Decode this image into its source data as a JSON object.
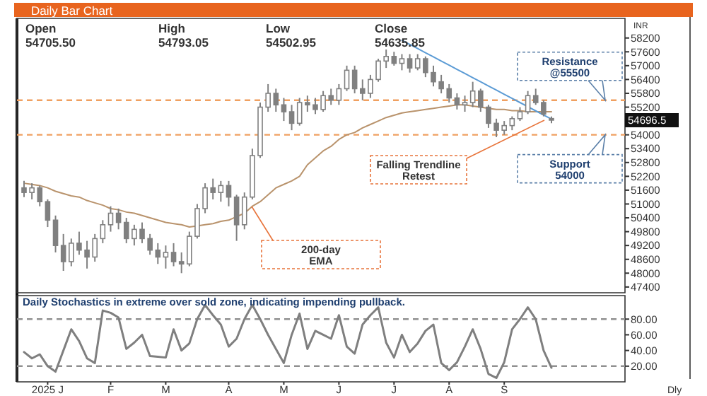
{
  "chart_data": [
    {
      "type": "candlestick",
      "title": "Daily Bar Chart",
      "ylabel": "INR",
      "categories": [
        null,
        null,
        null,
        null,
        null,
        null,
        null,
        null,
        null,
        null,
        null,
        null,
        null,
        null,
        null,
        null,
        null,
        null,
        null,
        null,
        null,
        null,
        null,
        null,
        null,
        null,
        null,
        null,
        null,
        null,
        null,
        null,
        null,
        null,
        null,
        null,
        null,
        null,
        null,
        null,
        null,
        null,
        null,
        null,
        null,
        null,
        null,
        null,
        null,
        null,
        null,
        null,
        null,
        null,
        null,
        null,
        null,
        null,
        null,
        null,
        null,
        null,
        null,
        null,
        null,
        null,
        null,
        null
      ],
      "ohlc": [
        [
          51700,
          52000,
          51300,
          51500
        ],
        [
          51500,
          51900,
          51200,
          51700
        ],
        [
          51700,
          51800,
          50900,
          51100
        ],
        [
          51100,
          51200,
          50000,
          50300
        ],
        [
          50300,
          50500,
          48900,
          49200
        ],
        [
          49200,
          49700,
          48100,
          48500
        ],
        [
          48500,
          49500,
          48300,
          49300
        ],
        [
          49300,
          49800,
          48800,
          49000
        ],
        [
          49000,
          49400,
          48200,
          48700
        ],
        [
          48700,
          49700,
          48500,
          49500
        ],
        [
          49500,
          50300,
          49300,
          50100
        ],
        [
          50100,
          50900,
          49800,
          50600
        ],
        [
          50600,
          50800,
          49900,
          50200
        ],
        [
          50200,
          50400,
          49300,
          49500
        ],
        [
          49500,
          50100,
          49200,
          49900
        ],
        [
          49900,
          50200,
          49300,
          49500
        ],
        [
          49500,
          49700,
          48800,
          49000
        ],
        [
          49000,
          49300,
          48400,
          48700
        ],
        [
          48700,
          49200,
          48200,
          48900
        ],
        [
          48900,
          49300,
          48300,
          48500
        ],
        [
          48500,
          48900,
          48000,
          48400
        ],
        [
          48400,
          49800,
          48300,
          49600
        ],
        [
          49600,
          51000,
          49500,
          50800
        ],
        [
          50800,
          51900,
          50600,
          51700
        ],
        [
          51700,
          52100,
          51200,
          51500
        ],
        [
          51500,
          52000,
          51100,
          51800
        ],
        [
          51800,
          52000,
          50900,
          51300
        ],
        [
          51300,
          51400,
          49400,
          50100
        ],
        [
          50100,
          51500,
          49900,
          51300
        ],
        [
          51300,
          53400,
          51200,
          53100
        ],
        [
          53100,
          55400,
          53000,
          55200
        ],
        [
          55200,
          56200,
          55000,
          55800
        ],
        [
          55800,
          56000,
          55000,
          55300
        ],
        [
          55300,
          55600,
          54600,
          55000
        ],
        [
          55000,
          55300,
          54200,
          54500
        ],
        [
          54500,
          55600,
          54400,
          55400
        ],
        [
          55400,
          55700,
          55000,
          55300
        ],
        [
          55300,
          55600,
          54900,
          55100
        ],
        [
          55100,
          55900,
          55000,
          55700
        ],
        [
          55700,
          56000,
          55300,
          55500
        ],
        [
          55500,
          56200,
          55300,
          56000
        ],
        [
          56000,
          57000,
          55900,
          56800
        ],
        [
          56800,
          57000,
          55800,
          56000
        ],
        [
          56000,
          56400,
          55500,
          55800
        ],
        [
          55800,
          56600,
          55600,
          56400
        ],
        [
          56400,
          57300,
          56300,
          57200
        ],
        [
          57200,
          57700,
          56900,
          57400
        ],
        [
          57400,
          57600,
          57000,
          57100
        ],
        [
          57100,
          57500,
          56800,
          57300
        ],
        [
          57300,
          57500,
          56700,
          56900
        ],
        [
          56900,
          57500,
          56800,
          57300
        ],
        [
          57300,
          57400,
          56500,
          56700
        ],
        [
          56700,
          57000,
          56100,
          56300
        ],
        [
          56300,
          56600,
          55800,
          56000
        ],
        [
          56000,
          56200,
          55400,
          55600
        ],
        [
          55600,
          55800,
          55100,
          55300
        ],
        [
          55300,
          55700,
          55000,
          55400
        ],
        [
          55400,
          56300,
          55200,
          55900
        ],
        [
          55900,
          56000,
          55000,
          55200
        ],
        [
          55200,
          55300,
          54300,
          54500
        ],
        [
          54500,
          54700,
          53900,
          54200
        ],
        [
          54200,
          54600,
          54000,
          54400
        ],
        [
          54400,
          54800,
          54200,
          54700
        ],
        [
          54700,
          55200,
          54600,
          55000
        ],
        [
          55000,
          55900,
          54900,
          55700
        ],
        [
          55700,
          56000,
          55300,
          55400
        ],
        [
          55400,
          55500,
          54800,
          54900
        ],
        [
          54705.5,
          54793.05,
          54502.95,
          54635.85
        ]
      ],
      "color": "#808080",
      "series": [
        {
          "type": "line",
          "color": "#b9936c",
          "values": [
            51900,
            51850,
            51800,
            51700,
            51550,
            51450,
            51350,
            51300,
            51150,
            51050,
            50950,
            50800,
            50750,
            50650,
            50600,
            50500,
            50400,
            50300,
            50200,
            50150,
            50100,
            50000,
            50050,
            50100,
            50150,
            50250,
            50300,
            50450,
            50600,
            50900,
            51100,
            51400,
            51700,
            51850,
            52000,
            52200,
            52700,
            53000,
            53300,
            53500,
            53800,
            54000,
            54100,
            54300,
            54450,
            54600,
            54750,
            54850,
            54950,
            55000,
            55050,
            55100,
            55150,
            55200,
            55250,
            55300,
            55300,
            55250,
            55200,
            55150,
            55100,
            55100,
            55050,
            55050,
            55000,
            55000,
            55000,
            55000
          ]
        },
        {
          "type": "line",
          "color": "#5b9bd5",
          "values": [
            null,
            null,
            null,
            null,
            null,
            null,
            null,
            null,
            null,
            null,
            null,
            null,
            null,
            null,
            null,
            null,
            null,
            null,
            null,
            null,
            null,
            null,
            null,
            null,
            null,
            null,
            null,
            null,
            null,
            null,
            null,
            null,
            null,
            null,
            null,
            null,
            null,
            null,
            null,
            null,
            null,
            null,
            null,
            null,
            null,
            null,
            null,
            null,
            58100,
            57920,
            57740,
            57560,
            57380,
            57200,
            57020,
            56840,
            56660,
            56480,
            56300,
            56120,
            55940,
            55760,
            55580,
            55400,
            55220,
            55040,
            54860,
            54680
          ]
        }
      ],
      "ylim": [
        47150,
        59050
      ],
      "yticks": [
        47400,
        48000,
        48600,
        49200,
        49800,
        50400,
        51000,
        51600,
        52200,
        52800,
        53400,
        54000,
        {
          "value": 54600,
          "label": null
        },
        55200,
        55800,
        56400,
        57000,
        57600,
        58200
      ],
      "ref_lines": [
        {
          "axis": "y",
          "value": 55500,
          "label": "Resistance @55500",
          "color": "#f0a060",
          "line_style": "dashed"
        },
        {
          "axis": "y",
          "value": 54000,
          "label": "Support 54000",
          "color": "#f0a060",
          "line_style": "dashed"
        }
      ],
      "annotations": [
        "Open",
        "High",
        "Low",
        "Close",
        "54705.50",
        "54793.05",
        "54502.95",
        "54635.85",
        "Falling Trendline Retest",
        "200-day EMA",
        "54696.5"
      ]
    },
    {
      "type": "line",
      "title": "Daily Stochastics in extreme over sold zone, indicating impending pullback.",
      "categories": [
        null,
        null,
        null,
        "2025 J",
        null,
        null,
        null,
        null,
        null,
        null,
        null,
        "F",
        null,
        null,
        null,
        null,
        null,
        null,
        "M",
        null,
        null,
        null,
        null,
        null,
        null,
        null,
        "A",
        null,
        null,
        null,
        null,
        null,
        null,
        "M",
        null,
        null,
        null,
        null,
        null,
        null,
        "J",
        null,
        null,
        null,
        null,
        null,
        null,
        "J",
        null,
        null,
        null,
        null,
        null,
        null,
        "A",
        null,
        null,
        null,
        null,
        null,
        null,
        "S",
        null,
        null,
        null,
        null,
        null,
        null
      ],
      "values": [
        38,
        30,
        35,
        20,
        13,
        40,
        67,
        52,
        30,
        24,
        91,
        88,
        82,
        42,
        50,
        60,
        33,
        32,
        31,
        67,
        40,
        49,
        80,
        98,
        85,
        73,
        45,
        55,
        80,
        98,
        80,
        60,
        42,
        24,
        60,
        87,
        42,
        65,
        60,
        55,
        85,
        45,
        36,
        73,
        85,
        95,
        50,
        31,
        60,
        38,
        49,
        65,
        73,
        24,
        15,
        25,
        45,
        67,
        42,
        10,
        5,
        25,
        67,
        80,
        95,
        80,
        40,
        18
      ],
      "color": "#7f7f7f",
      "ylim": [
        0,
        110
      ],
      "yticks": [
        {
          "value": 20,
          "label": "20.00"
        },
        {
          "value": 40,
          "label": "40.00"
        },
        {
          "value": 60,
          "label": "60.00"
        },
        {
          "value": 80,
          "label": "80.00"
        }
      ],
      "ref_lines": [
        {
          "axis": "y",
          "value": 80,
          "color": "#909090",
          "line_style": "dashed"
        },
        {
          "axis": "y",
          "value": 20,
          "color": "#909090",
          "line_style": "dashed"
        }
      ],
      "annotations": [
        "Dly"
      ]
    }
  ]
}
